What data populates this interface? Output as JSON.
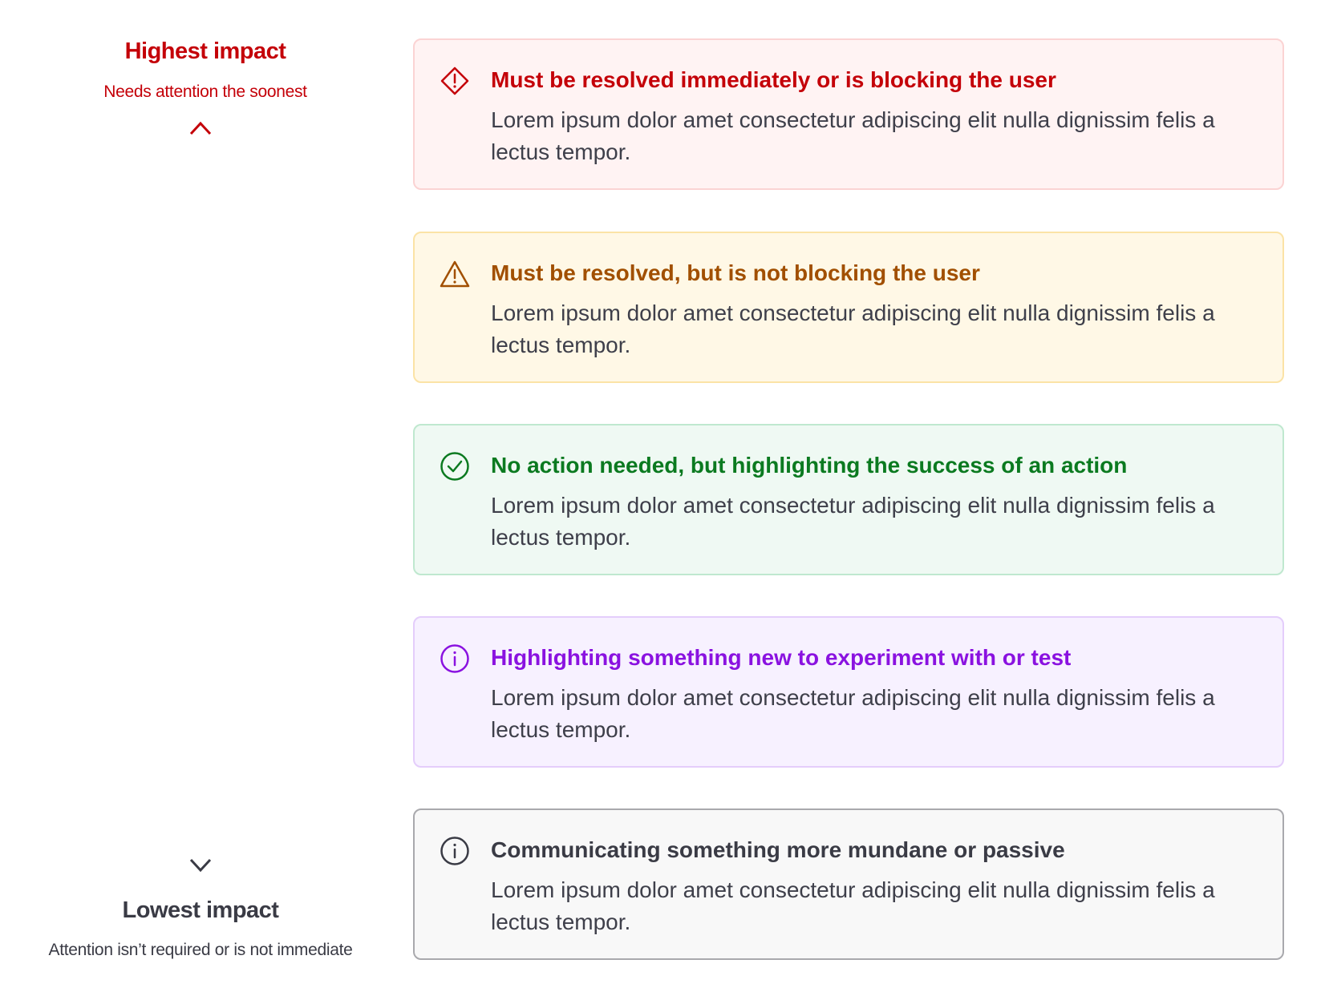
{
  "scale": {
    "highest": {
      "title": "Highest impact",
      "subtitle": "Needs attention the soonest"
    },
    "lowest": {
      "title": "Lowest impact",
      "subtitle": "Attention isn’t required or is not immediate"
    }
  },
  "cards": [
    {
      "icon": "diamond-exclamation-icon",
      "title": "Must be resolved immediately or is blocking the user",
      "body": "Lorem ipsum dolor amet consectetur adipiscing elit nulla dignissim felis a lectus tempor.",
      "color": "#c40008",
      "bg": "#fff3f3",
      "border": "#fbd3d3"
    },
    {
      "icon": "warning-triangle-icon",
      "title": "Must be resolved, but is not blocking the user",
      "body": "Lorem ipsum dolor amet consectetur adipiscing elit nulla dignissim felis a lectus tempor.",
      "color": "#a14f00",
      "bg": "#fff8e6",
      "border": "#fbe3a6"
    },
    {
      "icon": "check-circle-icon",
      "title": "No action needed, but highlighting the success of an action",
      "body": "Lorem ipsum dolor amet consectetur adipiscing elit nulla dignissim felis a lectus tempor.",
      "color": "#0b7a20",
      "bg": "#eff9f3",
      "border": "#bfe8cf"
    },
    {
      "icon": "info-circle-icon",
      "title": "Highlighting something new to experiment with or test",
      "body": "Lorem ipsum dolor amet consectetur adipiscing elit nulla dignissim felis a lectus tempor.",
      "color": "#8a12e0",
      "bg": "#f7f1ff",
      "border": "#e4cdfb"
    },
    {
      "icon": "info-circle-icon",
      "title": "Communicating something more mundane or passive",
      "body": "Lorem ipsum dolor amet consectetur adipiscing elit nulla dignissim felis a lectus tempor.",
      "color": "#3a3b45",
      "bg": "#f8f8f8",
      "border": "#a9a9ad"
    }
  ]
}
